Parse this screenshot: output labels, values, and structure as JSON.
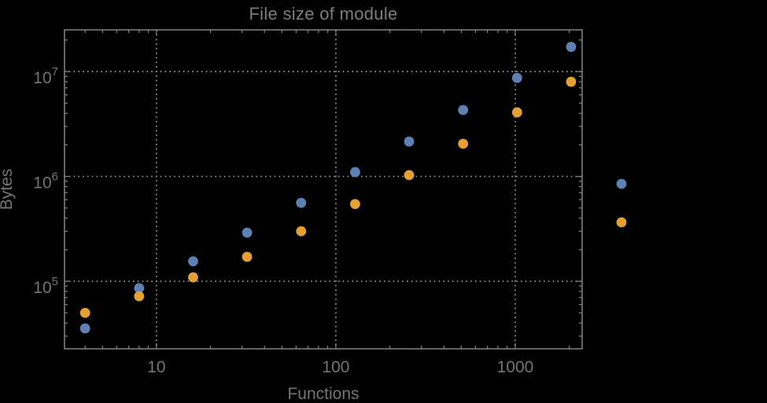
{
  "figure": {
    "title": "File size of module",
    "xlabel": "Functions",
    "ylabel": "Bytes"
  },
  "colors": {
    "background": "#000000",
    "text": "#747474",
    "frame": "#848484",
    "grid": "#9c9c9c"
  },
  "chart_data": {
    "type": "scatter",
    "title": "File size of module",
    "xlabel": "Functions",
    "ylabel": "Bytes",
    "x_scale": "log",
    "y_scale": "log",
    "grid": "dotted lines at decade ticks",
    "legend_position": "right of plot frame, marker dots only (labels not visible)",
    "x": [
      4,
      8,
      16,
      32,
      64,
      128,
      256,
      512,
      1024,
      2048
    ],
    "series": [
      {
        "name": "blue",
        "color": "#5E81B5",
        "values": [
          35500,
          86000,
          155000,
          291000,
          560000,
          1100000,
          2150000,
          4300000,
          8700000,
          17200000
        ]
      },
      {
        "name": "orange",
        "color": "#E3A033",
        "values": [
          50000,
          72000,
          109000,
          171000,
          300000,
          545000,
          1030000,
          2050000,
          4080000,
          8000000
        ]
      }
    ],
    "xlim": [
      3.07,
      2360
    ],
    "ylim": [
      22700,
      25000000
    ],
    "x_major_ticks": [
      10,
      100,
      1000
    ],
    "x_tick_labels": [
      "10",
      "100",
      "1000"
    ],
    "y_major_ticks": [
      100000,
      1000000,
      10000000
    ],
    "y_tick_base": "10",
    "y_tick_exponents": [
      "5",
      "6",
      "7"
    ]
  }
}
